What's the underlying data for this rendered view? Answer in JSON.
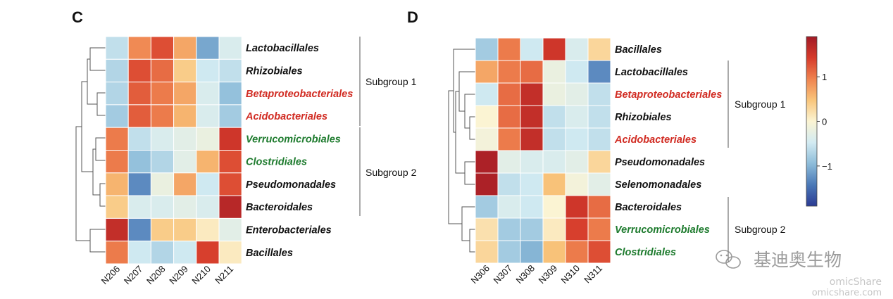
{
  "chart_data": [
    {
      "type": "heatmap",
      "panel": "C",
      "columns": [
        "N206",
        "N207",
        "N208",
        "N209",
        "N210",
        "N211"
      ],
      "rows": [
        {
          "label": "Lactobacillales",
          "color": "#111111",
          "values": [
            -0.6,
            0.9,
            1.3,
            0.7,
            -1.1,
            -0.4
          ]
        },
        {
          "label": "Rhizobiales",
          "color": "#111111",
          "values": [
            -0.7,
            1.3,
            1.1,
            0.4,
            -0.5,
            -0.6
          ]
        },
        {
          "label": "Betaproteobacteriales",
          "color": "#d12b22",
          "values": [
            -0.7,
            1.2,
            1.0,
            0.7,
            -0.4,
            -0.9
          ]
        },
        {
          "label": "Acidobacteriales",
          "color": "#d12b22",
          "values": [
            -0.8,
            1.2,
            1.0,
            0.6,
            -0.4,
            -0.8
          ]
        },
        {
          "label": "Verrucomicrobiales",
          "color": "#1e7b2e",
          "values": [
            1.0,
            -0.6,
            -0.4,
            -0.3,
            -0.2,
            1.5
          ]
        },
        {
          "label": "Clostridiales",
          "color": "#1e7b2e",
          "values": [
            1.0,
            -0.9,
            -0.7,
            -0.3,
            0.6,
            1.3
          ]
        },
        {
          "label": "Pseudomonadales",
          "color": "#111111",
          "values": [
            0.6,
            -1.3,
            -0.2,
            0.7,
            -0.5,
            1.3
          ]
        },
        {
          "label": "Bacteroidales",
          "color": "#111111",
          "values": [
            0.4,
            -0.4,
            -0.4,
            -0.3,
            -0.4,
            1.7
          ]
        },
        {
          "label": "Enterobacteriales",
          "color": "#111111",
          "values": [
            1.6,
            -1.3,
            0.4,
            0.4,
            0.1,
            -0.3
          ]
        },
        {
          "label": "Bacillales",
          "color": "#111111",
          "values": [
            1.0,
            -0.5,
            -0.7,
            -0.5,
            1.4,
            0.1
          ]
        }
      ],
      "groups": [
        {
          "label": "Subgroup 1",
          "rows": [
            0,
            3
          ]
        },
        {
          "label": "Subgroup 2",
          "rows": [
            4,
            7
          ]
        }
      ]
    },
    {
      "type": "heatmap",
      "panel": "D",
      "columns": [
        "N306",
        "N307",
        "N308",
        "N309",
        "N310",
        "N311"
      ],
      "rows": [
        {
          "label": "Bacillales",
          "color": "#111111",
          "values": [
            -0.8,
            1.0,
            -0.5,
            1.5,
            -0.4,
            0.3
          ]
        },
        {
          "label": "Lactobacillales",
          "color": "#111111",
          "values": [
            0.7,
            1.0,
            1.1,
            -0.2,
            -0.5,
            -1.3
          ]
        },
        {
          "label": "Betaproteobacteriales",
          "color": "#d12b22",
          "values": [
            -0.5,
            1.1,
            1.6,
            -0.2,
            -0.3,
            -0.6
          ]
        },
        {
          "label": "Rhizobiales",
          "color": "#111111",
          "values": [
            0.0,
            1.1,
            1.6,
            -0.6,
            -0.4,
            -0.6
          ]
        },
        {
          "label": "Acidobacteriales",
          "color": "#d12b22",
          "values": [
            -0.1,
            1.0,
            1.6,
            -0.6,
            -0.5,
            -0.6
          ]
        },
        {
          "label": "Pseudomonadales",
          "color": "#111111",
          "values": [
            1.8,
            -0.3,
            -0.4,
            -0.4,
            -0.3,
            0.3
          ]
        },
        {
          "label": "Selenomonadales",
          "color": "#111111",
          "values": [
            1.8,
            -0.6,
            -0.5,
            0.5,
            -0.1,
            -0.3
          ]
        },
        {
          "label": "Bacteroidales",
          "color": "#111111",
          "values": [
            -0.8,
            -0.4,
            -0.5,
            0.0,
            1.5,
            1.1
          ]
        },
        {
          "label": "Verrucomicrobiales",
          "color": "#1e7b2e",
          "values": [
            0.2,
            -0.8,
            -0.8,
            0.1,
            1.4,
            1.0
          ]
        },
        {
          "label": "Clostridiales",
          "color": "#1e7b2e",
          "values": [
            0.3,
            -0.8,
            -1.0,
            0.5,
            1.0,
            1.3
          ]
        }
      ],
      "groups": [
        {
          "label": "Subgroup 1",
          "rows": [
            1,
            4
          ]
        },
        {
          "label": "Subgroup 2",
          "rows": [
            7,
            9
          ]
        }
      ]
    }
  ],
  "colorbar": {
    "ticks": [
      1,
      0,
      -1
    ],
    "tick_labels": [
      "1",
      "0",
      "−1"
    ],
    "range": [
      -1.9,
      1.9
    ],
    "stops": [
      "#2b3b93",
      "#4a78b7",
      "#8dbcd9",
      "#d3ebf2",
      "#fbf4d3",
      "#f9c57b",
      "#ef834f",
      "#d63b2b",
      "#a11a26"
    ]
  },
  "watermark": {
    "name": "基迪奥生物",
    "brand": "omicShare",
    "url": "omicshare.com"
  }
}
